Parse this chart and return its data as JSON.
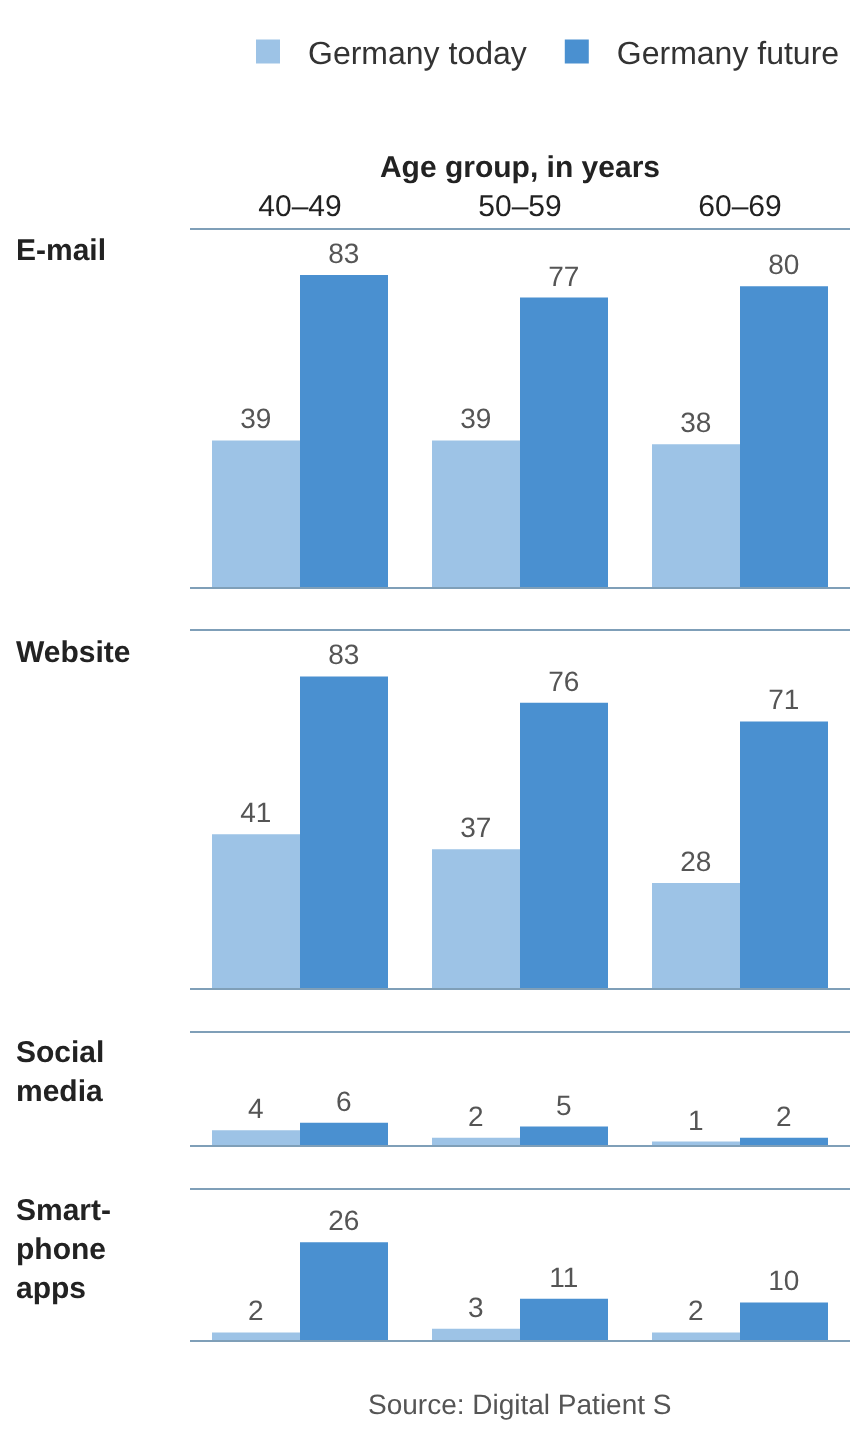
{
  "chart_data": [
    {
      "type": "bar",
      "title": "E-mail",
      "xlabel": "Age group, in years",
      "categories": [
        "40–49",
        "50–59",
        "60–69"
      ],
      "series": [
        {
          "name": "Germany today",
          "color": "#9dc3e6",
          "values": [
            39,
            39,
            38
          ]
        },
        {
          "name": "Germany future",
          "color": "#4a90d0",
          "values": [
            83,
            77,
            80
          ]
        }
      ],
      "ylim": [
        0,
        95
      ],
      "data_labels": true,
      "legend": "top",
      "tick_labels": "x"
    },
    {
      "type": "bar",
      "title": "Website",
      "categories": [
        null,
        null,
        null
      ],
      "series": [
        {
          "color": "#9dc3e6",
          "values": [
            41,
            37,
            28
          ]
        },
        {
          "color": "#4a90d0",
          "values": [
            83,
            76,
            71
          ]
        }
      ],
      "ylim": [
        0,
        95
      ],
      "data_labels": true,
      "tick_labels": false
    },
    {
      "type": "bar",
      "title": "Social\nmedia",
      "categories": [
        null,
        null,
        null
      ],
      "series": [
        {
          "color": "#9dc3e6",
          "values": [
            4,
            2,
            1
          ]
        },
        {
          "color": "#4a90d0",
          "values": [
            6,
            5,
            2
          ]
        }
      ],
      "ylim": [
        0,
        30
      ],
      "data_labels": true,
      "tick_labels": false
    },
    {
      "type": "bar",
      "title": "Smart-\nphone\napps",
      "categories": [
        null,
        null,
        null
      ],
      "series": [
        {
          "color": "#9dc3e6",
          "values": [
            2,
            3,
            2
          ]
        },
        {
          "color": "#4a90d0",
          "values": [
            26,
            11,
            10
          ]
        }
      ],
      "ylim": [
        0,
        40
      ],
      "data_labels": true,
      "tick_labels": false,
      "annotations": [
        "Source: Digital Patient S"
      ]
    }
  ]
}
